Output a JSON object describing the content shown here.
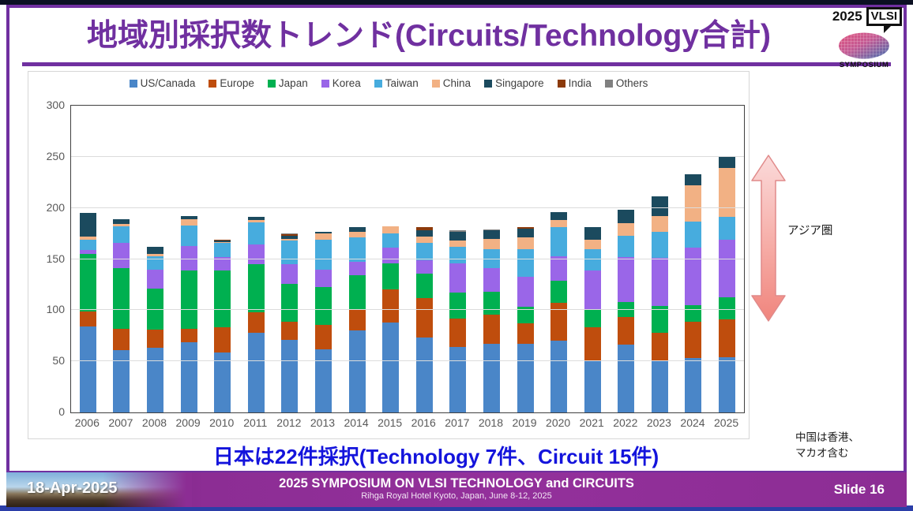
{
  "title": "地域別採択数トレンド(Circuits/Technology合計)",
  "logo": {
    "year": "2025",
    "box": "VLSI",
    "caption": "SYMPOSIUM"
  },
  "colors": {
    "accent_purple": "#7030A0",
    "highlight_blue": "#1414DC",
    "arrow_pink_light": "#FBDADA",
    "arrow_pink_dark": "#F0857D",
    "arrow_stroke": "#E08A8A"
  },
  "chart_data": {
    "type": "bar",
    "stacked": true,
    "title": "",
    "xlabel": "",
    "ylabel": "",
    "ylim": [
      0,
      300
    ],
    "yticks": [
      0,
      50,
      100,
      150,
      200,
      250,
      300
    ],
    "grid": true,
    "legend_position": "top",
    "categories": [
      "2006",
      "2007",
      "2008",
      "2009",
      "2010",
      "2011",
      "2012",
      "2013",
      "2014",
      "2015",
      "2016",
      "2017",
      "2018",
      "2019",
      "2020",
      "2021",
      "2022",
      "2023",
      "2024",
      "2025"
    ],
    "series": [
      {
        "name": "US/Canada",
        "color": "#4A86C8",
        "values": [
          84,
          61,
          63,
          69,
          59,
          78,
          71,
          62,
          80,
          88,
          73,
          64,
          67,
          67,
          70,
          50,
          66,
          50,
          53,
          54
        ]
      },
      {
        "name": "Europe",
        "color": "#BF4D0D",
        "values": [
          15,
          21,
          18,
          13,
          24,
          20,
          18,
          24,
          20,
          32,
          39,
          28,
          29,
          20,
          37,
          33,
          27,
          28,
          36,
          37
        ]
      },
      {
        "name": "Japan",
        "color": "#00B050",
        "values": [
          56,
          59,
          40,
          57,
          56,
          47,
          37,
          37,
          34,
          26,
          24,
          25,
          22,
          16,
          22,
          17,
          15,
          26,
          16,
          22
        ]
      },
      {
        "name": "Korea",
        "color": "#9A66E8",
        "values": [
          4,
          25,
          19,
          24,
          13,
          19,
          19,
          17,
          13,
          15,
          13,
          29,
          23,
          30,
          24,
          39,
          44,
          47,
          56,
          56
        ]
      },
      {
        "name": "Taiwan",
        "color": "#47ACDE",
        "values": [
          10,
          16,
          13,
          20,
          14,
          22,
          23,
          29,
          24,
          14,
          17,
          16,
          19,
          27,
          28,
          21,
          21,
          26,
          26,
          22
        ]
      },
      {
        "name": "China",
        "color": "#F2B184",
        "values": [
          3,
          2,
          2,
          6,
          1,
          2,
          2,
          6,
          6,
          7,
          6,
          6,
          10,
          11,
          7,
          9,
          12,
          15,
          35,
          48
        ]
      },
      {
        "name": "Singapore",
        "color": "#1B4A5E",
        "values": [
          23,
          5,
          7,
          3,
          1,
          3,
          3,
          2,
          4,
          0,
          6,
          9,
          8,
          9,
          8,
          12,
          13,
          19,
          11,
          12
        ]
      },
      {
        "name": "India",
        "color": "#8C3A0B",
        "values": [
          0,
          0,
          0,
          0,
          1,
          0,
          1,
          0,
          0,
          0,
          3,
          0,
          0,
          1,
          0,
          0,
          0,
          0,
          0,
          0
        ]
      },
      {
        "name": "Others",
        "color": "#808080",
        "values": [
          0,
          0,
          0,
          0,
          0,
          0,
          1,
          0,
          0,
          0,
          0,
          1,
          1,
          0,
          0,
          0,
          0,
          0,
          0,
          0
        ]
      }
    ]
  },
  "annotations": {
    "asia_label": "アジア圏",
    "china_note_line1": "中国は香港、",
    "china_note_line2": "マカオ含む",
    "highlight": "日本は22件採択(Technology 7件、Circuit 15件)"
  },
  "footer": {
    "date": "18-Apr-2025",
    "conference": "2025 SYMPOSIUM ON VLSI TECHNOLOGY and CIRCUITS",
    "venue": "Rihga Royal Hotel Kyoto, Japan, June 8-12, 2025",
    "slide": "Slide 16"
  }
}
